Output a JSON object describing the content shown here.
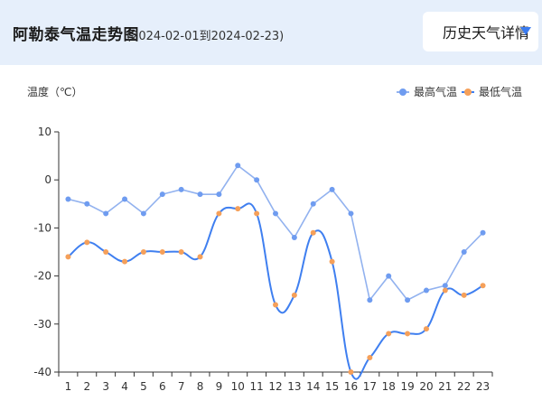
{
  "header": {
    "title": "阿勒泰气温走势图",
    "date_range": "(2024-02-01到2024-02-23)",
    "detail_button": "历史天气详情"
  },
  "colors": {
    "high": "#6f9cf0",
    "low": "#f5a05a",
    "line_low": "#3f7ff0",
    "header_bg": "#e6effb",
    "caret": "#3a7bf0"
  },
  "icons": {
    "dropdown": "caret-down-icon"
  },
  "chart_data": {
    "type": "line",
    "ylabel": "温度（℃）",
    "ylim": [
      -40,
      10
    ],
    "yticks": [
      10,
      0,
      -10,
      -20,
      -30,
      -40
    ],
    "x": [
      "1",
      "2",
      "3",
      "4",
      "5",
      "6",
      "7",
      "8",
      "9",
      "10",
      "11",
      "12",
      "13",
      "14",
      "15",
      "16",
      "17",
      "18",
      "19",
      "20",
      "21",
      "22",
      "23"
    ],
    "legend_position": "top-right",
    "grid": false,
    "series": [
      {
        "name": "最高气温",
        "color": "#6f9cf0",
        "smooth": false,
        "values": [
          -4,
          -5,
          -7,
          -4,
          -7,
          -3,
          -2,
          -3,
          -3,
          3,
          0,
          -7,
          -12,
          -5,
          -2,
          -7,
          -25,
          -20,
          -25,
          -23,
          -22,
          -15,
          -11
        ]
      },
      {
        "name": "最低气温",
        "color": "#f5a05a",
        "smooth": true,
        "values": [
          -16,
          -13,
          -15,
          -17,
          -15,
          -15,
          -15,
          -16,
          -7,
          -6,
          -7,
          -26,
          -24,
          -11,
          -17,
          -40,
          -37,
          -32,
          -32,
          -31,
          -23,
          -24,
          -22
        ]
      }
    ]
  }
}
